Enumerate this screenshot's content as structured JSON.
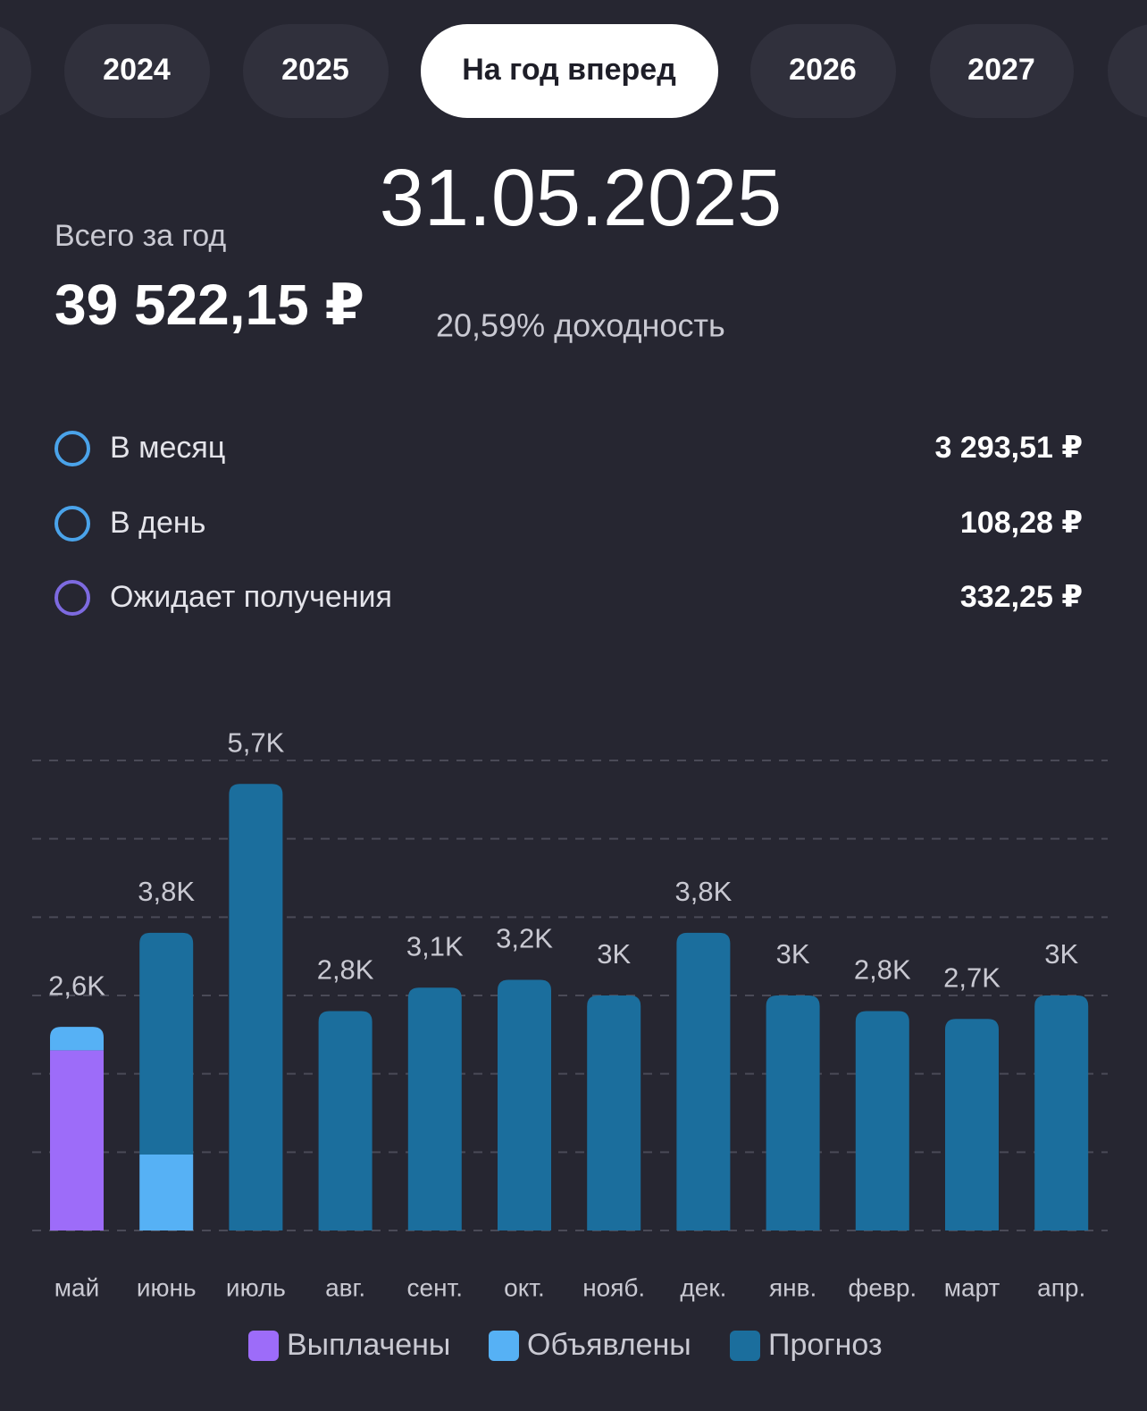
{
  "tabs": [
    "2024",
    "2025",
    "На год вперед",
    "2026",
    "2027"
  ],
  "date": "31.05.2025",
  "summary": {
    "label": "Всего за год",
    "total": "39 522,15 ₽",
    "yield": "20,59% доходность"
  },
  "stats": [
    {
      "label": "В месяц",
      "value": "3 293,51 ₽"
    },
    {
      "label": "В день",
      "value": "108,28 ₽"
    },
    {
      "label": "Ожидает получения",
      "value": "332,25 ₽"
    }
  ],
  "chart_data": {
    "type": "stacked_bar",
    "categories": [
      "май",
      "июнь",
      "июль",
      "авг.",
      "сент.",
      "окт.",
      "нояб.",
      "дек.",
      "янв.",
      "февр.",
      "март",
      "апр."
    ],
    "series": [
      {
        "name": "Выплачены",
        "color": "#9d6cf9",
        "values": [
          2300,
          0,
          0,
          0,
          0,
          0,
          0,
          0,
          0,
          0,
          0,
          0
        ]
      },
      {
        "name": "Объявлены",
        "color": "#56b1f5",
        "values": [
          300,
          970,
          0,
          0,
          0,
          0,
          0,
          0,
          0,
          0,
          0,
          0
        ]
      },
      {
        "name": "Прогноз",
        "color": "#1b6e9d",
        "values": [
          0,
          2830,
          5700,
          2800,
          3100,
          3200,
          3000,
          3800,
          3000,
          2800,
          2700,
          3000
        ]
      }
    ],
    "total_labels": [
      "2,6K",
      "3,8K",
      "5,7K",
      "2,8K",
      "3,1K",
      "3,2K",
      "3K",
      "3,8K",
      "3K",
      "2,8K",
      "2,7K",
      "3K"
    ],
    "ylim": [
      0,
      6000
    ],
    "yticks": [
      0,
      1000,
      2000,
      3000,
      4000,
      5000,
      6000
    ],
    "grid": true
  }
}
